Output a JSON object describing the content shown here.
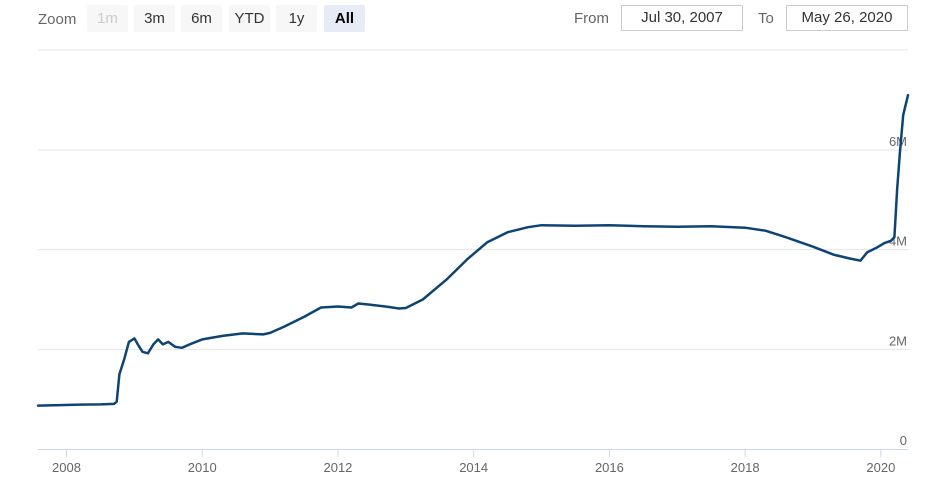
{
  "toolbar": {
    "zoom_label": "Zoom",
    "buttons": [
      {
        "label": "1m",
        "state": "disabled"
      },
      {
        "label": "3m",
        "state": "normal"
      },
      {
        "label": "6m",
        "state": "normal"
      },
      {
        "label": "YTD",
        "state": "normal"
      },
      {
        "label": "1y",
        "state": "normal"
      },
      {
        "label": "All",
        "state": "active"
      }
    ],
    "from_label": "From",
    "from_value": "Jul 30, 2007",
    "to_label": "To",
    "to_value": "May 26, 2020"
  },
  "colors": {
    "line": "#0e4473",
    "grid": "#e6e6e6",
    "axis": "#ccd6eb",
    "active_button": "#e6ebf5"
  },
  "chart_data": {
    "type": "line",
    "title": "",
    "xlabel": "",
    "ylabel": "",
    "x_ticks": [
      "2008",
      "2010",
      "2012",
      "2014",
      "2016",
      "2018",
      "2020"
    ],
    "y_ticks": [
      "0",
      "2M",
      "4M",
      "6M"
    ],
    "xlim": [
      2007.58,
      2020.4
    ],
    "ylim": [
      0,
      6000000
    ],
    "grid": true,
    "series": [
      {
        "values": [
          [
            2007.58,
            870000
          ],
          [
            2007.9,
            880000
          ],
          [
            2008.2,
            890000
          ],
          [
            2008.5,
            895000
          ],
          [
            2008.7,
            905000
          ],
          [
            2008.74,
            950000
          ],
          [
            2008.78,
            1500000
          ],
          [
            2008.85,
            1800000
          ],
          [
            2008.92,
            2150000
          ],
          [
            2009.0,
            2220000
          ],
          [
            2009.05,
            2100000
          ],
          [
            2009.12,
            1950000
          ],
          [
            2009.2,
            1920000
          ],
          [
            2009.28,
            2100000
          ],
          [
            2009.35,
            2200000
          ],
          [
            2009.42,
            2100000
          ],
          [
            2009.5,
            2150000
          ],
          [
            2009.6,
            2050000
          ],
          [
            2009.7,
            2030000
          ],
          [
            2009.85,
            2120000
          ],
          [
            2010.0,
            2200000
          ],
          [
            2010.3,
            2270000
          ],
          [
            2010.6,
            2320000
          ],
          [
            2010.9,
            2300000
          ],
          [
            2011.0,
            2330000
          ],
          [
            2011.2,
            2450000
          ],
          [
            2011.5,
            2650000
          ],
          [
            2011.75,
            2840000
          ],
          [
            2012.0,
            2860000
          ],
          [
            2012.2,
            2840000
          ],
          [
            2012.3,
            2920000
          ],
          [
            2012.45,
            2900000
          ],
          [
            2012.7,
            2860000
          ],
          [
            2012.9,
            2820000
          ],
          [
            2013.0,
            2830000
          ],
          [
            2013.25,
            3000000
          ],
          [
            2013.6,
            3400000
          ],
          [
            2013.9,
            3800000
          ],
          [
            2014.2,
            4150000
          ],
          [
            2014.5,
            4350000
          ],
          [
            2014.8,
            4450000
          ],
          [
            2015.0,
            4490000
          ],
          [
            2015.5,
            4480000
          ],
          [
            2016.0,
            4490000
          ],
          [
            2016.5,
            4470000
          ],
          [
            2017.0,
            4460000
          ],
          [
            2017.5,
            4470000
          ],
          [
            2018.0,
            4440000
          ],
          [
            2018.3,
            4380000
          ],
          [
            2018.6,
            4250000
          ],
          [
            2019.0,
            4060000
          ],
          [
            2019.3,
            3900000
          ],
          [
            2019.55,
            3820000
          ],
          [
            2019.7,
            3780000
          ],
          [
            2019.8,
            3950000
          ],
          [
            2019.95,
            4050000
          ],
          [
            2020.05,
            4130000
          ],
          [
            2020.15,
            4180000
          ],
          [
            2020.2,
            4250000
          ],
          [
            2020.24,
            5200000
          ],
          [
            2020.28,
            5950000
          ],
          [
            2020.33,
            6700000
          ],
          [
            2020.4,
            7100000
          ]
        ]
      }
    ]
  }
}
